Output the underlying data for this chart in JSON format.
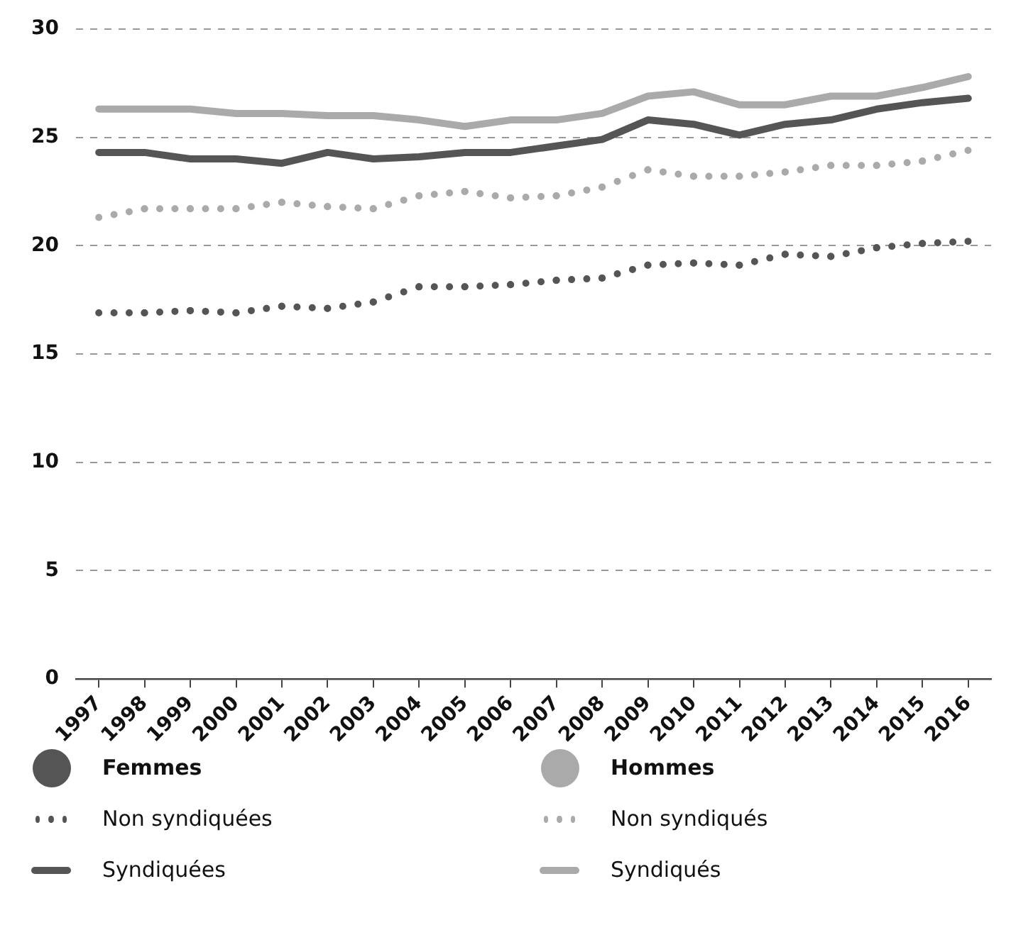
{
  "chart_data": {
    "type": "line",
    "categories": [
      "1997",
      "1998",
      "1999",
      "2000",
      "2001",
      "2002",
      "2003",
      "2004",
      "2005",
      "2006",
      "2007",
      "2008",
      "2009",
      "2010",
      "2011",
      "2012",
      "2013",
      "2014",
      "2015",
      "2016"
    ],
    "ylim": [
      0,
      30
    ],
    "yticks": [
      0,
      5,
      10,
      15,
      20,
      25,
      30
    ],
    "grid": "y",
    "legend": "bottom",
    "marker": "none",
    "annotations": [
      "Femmes",
      "Hommes"
    ],
    "series": [
      {
        "name": "Non syndiquées",
        "color": "#555555",
        "line_style": "dotted",
        "values": [
          16.9,
          16.9,
          17.0,
          16.9,
          17.2,
          17.1,
          17.4,
          18.1,
          18.1,
          18.2,
          18.4,
          18.5,
          19.1,
          19.2,
          19.1,
          19.6,
          19.5,
          19.9,
          20.1,
          20.2
        ]
      },
      {
        "name": "Syndiquées",
        "color": "#555555",
        "line_style": "solid",
        "values": [
          24.3,
          24.3,
          24.0,
          24.0,
          23.8,
          24.3,
          24.0,
          24.1,
          24.3,
          24.3,
          24.6,
          24.9,
          25.8,
          25.6,
          25.1,
          25.6,
          25.8,
          26.3,
          26.6,
          26.8
        ]
      },
      {
        "name": "Non syndiqués",
        "color": "#aaaaaa",
        "line_style": "dotted",
        "values": [
          21.3,
          21.7,
          21.7,
          21.7,
          22.0,
          21.8,
          21.7,
          22.3,
          22.5,
          22.2,
          22.3,
          22.7,
          23.5,
          23.2,
          23.2,
          23.4,
          23.7,
          23.7,
          23.9,
          24.4
        ]
      },
      {
        "name": "Syndiqués",
        "color": "#aaaaaa",
        "line_style": "solid",
        "values": [
          26.3,
          26.3,
          26.3,
          26.1,
          26.1,
          26.0,
          26.0,
          25.8,
          25.5,
          25.8,
          25.8,
          26.1,
          26.9,
          27.1,
          26.5,
          26.5,
          26.9,
          26.9,
          27.3,
          27.8
        ]
      }
    ]
  }
}
